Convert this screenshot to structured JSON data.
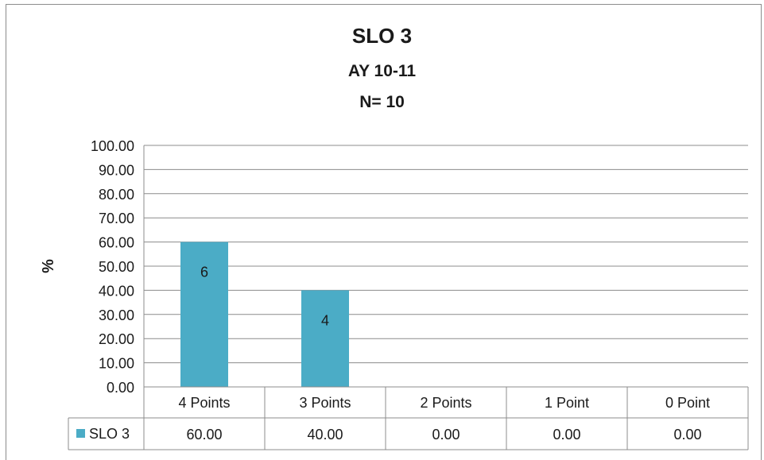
{
  "chart_data": {
    "type": "bar",
    "title": "SLO 3",
    "subtitle_1": "AY 10-11",
    "subtitle_2": "N= 10",
    "ylabel": "%",
    "ylim": [
      0,
      100
    ],
    "y_ticks": [
      "0.00",
      "10.00",
      "20.00",
      "30.00",
      "40.00",
      "50.00",
      "60.00",
      "70.00",
      "80.00",
      "90.00",
      "100.00"
    ],
    "grid": true,
    "categories": [
      "4 Points",
      "3 Points",
      "2 Points",
      "1 Point",
      "0 Point"
    ],
    "series": [
      {
        "name": "SLO 3",
        "values": [
          60.0,
          40.0,
          0.0,
          0.0,
          0.0
        ],
        "value_text": [
          "60.00",
          "40.00",
          "0.00",
          "0.00",
          "0.00"
        ],
        "data_labels": [
          "6",
          "4",
          "",
          "",
          ""
        ],
        "color": "#4bacc6"
      }
    ],
    "legend": "data-table"
  }
}
